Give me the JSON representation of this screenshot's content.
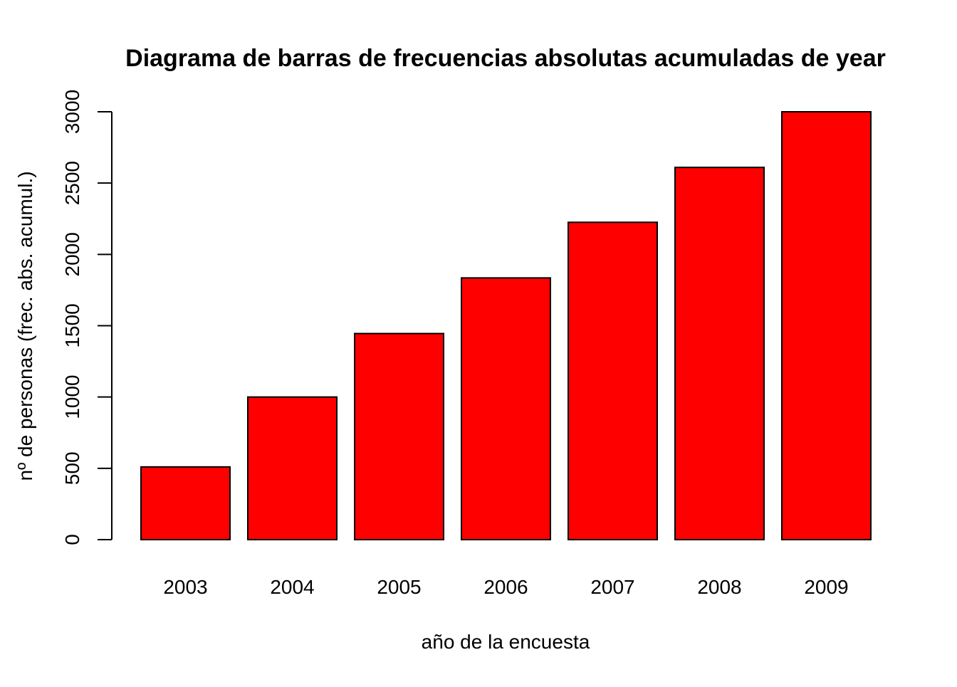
{
  "chart_data": {
    "type": "bar",
    "title": "Diagrama de barras de frecuencias absolutas acumuladas de year",
    "xlabel": "año de la encuesta",
    "ylabel": "nº de personas (frec. abs. acumul.)",
    "categories": [
      "2003",
      "2004",
      "2005",
      "2006",
      "2007",
      "2008",
      "2009"
    ],
    "values": [
      510,
      1000,
      1445,
      1835,
      2225,
      2610,
      3000
    ],
    "ylim": [
      0,
      3000
    ],
    "yticks": [
      0,
      500,
      1000,
      1500,
      2000,
      2500,
      3000
    ],
    "grid": false,
    "legend": "none",
    "bar_color": "#ff0000",
    "border_color": "#000000"
  }
}
